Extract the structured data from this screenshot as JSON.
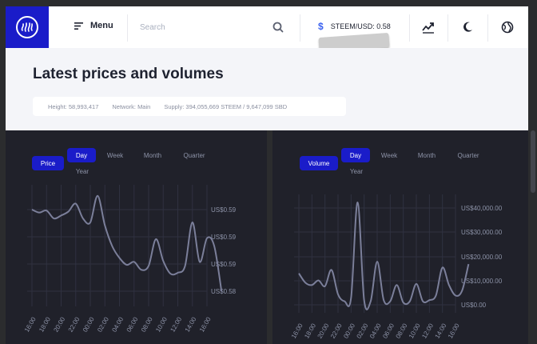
{
  "topbar": {
    "menu_label": "Menu",
    "search_placeholder": "Search",
    "price_label": "STEEM/USD: 0.58"
  },
  "header": {
    "title": "Latest prices and volumes",
    "stats": {
      "height": "Height: 58,993,417",
      "network": "Network: Main",
      "supply": "Supply: 394,055,669 STEEM / 9,647,099 SBD"
    }
  },
  "colors": {
    "accent": "#1a1cc9",
    "panel": "#20212a",
    "line": "#7b7f9a"
  },
  "price_panel": {
    "series_label": "Price",
    "tabs": [
      "Day",
      "Week",
      "Month",
      "Quarter",
      "Year"
    ],
    "active_tab": "Day"
  },
  "volume_panel": {
    "series_label": "Volume",
    "tabs": [
      "Day",
      "Week",
      "Month",
      "Quarter",
      "Year"
    ],
    "active_tab": "Day"
  },
  "chart_data": [
    {
      "type": "line",
      "x": [
        "16:00",
        "18:00",
        "20:00",
        "22:00",
        "00:00",
        "02:00",
        "04:00",
        "06:00",
        "08:00",
        "10:00",
        "12:00",
        "14:00",
        "16:00"
      ],
      "y_tick_labels": [
        "US$0.59",
        "US$0.59",
        "US$0.59",
        "US$0.58"
      ],
      "points": [
        [
          0,
          0.5875
        ],
        [
          0.5,
          0.5872
        ],
        [
          1,
          0.5874
        ],
        [
          1.5,
          0.5866
        ],
        [
          2,
          0.5869
        ],
        [
          2.5,
          0.5873
        ],
        [
          3,
          0.5881
        ],
        [
          3.5,
          0.5866
        ],
        [
          4,
          0.5862
        ],
        [
          4.5,
          0.5889
        ],
        [
          5,
          0.5859
        ],
        [
          5.5,
          0.5838
        ],
        [
          6,
          0.5826
        ],
        [
          6.5,
          0.5819
        ],
        [
          7,
          0.5822
        ],
        [
          7.5,
          0.5814
        ],
        [
          8,
          0.5818
        ],
        [
          8.5,
          0.5845
        ],
        [
          9,
          0.5823
        ],
        [
          9.5,
          0.581
        ],
        [
          10,
          0.5811
        ],
        [
          10.5,
          0.5818
        ],
        [
          11,
          0.5862
        ],
        [
          11.5,
          0.5822
        ],
        [
          12,
          0.5846
        ],
        [
          12.5,
          0.5838
        ],
        [
          13,
          0.5792
        ]
      ],
      "ylim": [
        0.5785,
        0.5892
      ]
    },
    {
      "type": "line",
      "x": [
        "16:00",
        "18:00",
        "20:00",
        "22:00",
        "00:00",
        "02:00",
        "04:00",
        "06:00",
        "08:00",
        "10:00",
        "12:00",
        "14:00",
        "16:00"
      ],
      "y_tick_labels": [
        "US$40,000.00",
        "US$30,000.00",
        "US$20,000.00",
        "US$10,000.00",
        "US$0.00"
      ],
      "points": [
        [
          0,
          13500
        ],
        [
          0.5,
          9500
        ],
        [
          1,
          8500
        ],
        [
          1.5,
          10500
        ],
        [
          2,
          8000
        ],
        [
          2.5,
          15000
        ],
        [
          3,
          4500
        ],
        [
          3.5,
          1500
        ],
        [
          4,
          3000
        ],
        [
          4.5,
          44000
        ],
        [
          5,
          2000
        ],
        [
          5.5,
          1500
        ],
        [
          6,
          18500
        ],
        [
          6.5,
          2000
        ],
        [
          7,
          1500
        ],
        [
          7.5,
          8500
        ],
        [
          8,
          1000
        ],
        [
          8.5,
          1500
        ],
        [
          9,
          9000
        ],
        [
          9.5,
          1500
        ],
        [
          10,
          2000
        ],
        [
          10.5,
          4000
        ],
        [
          11,
          16000
        ],
        [
          11.5,
          8500
        ],
        [
          12,
          4000
        ],
        [
          12.5,
          6000
        ],
        [
          13,
          17500
        ]
      ],
      "ylim": [
        0,
        44000
      ]
    }
  ]
}
